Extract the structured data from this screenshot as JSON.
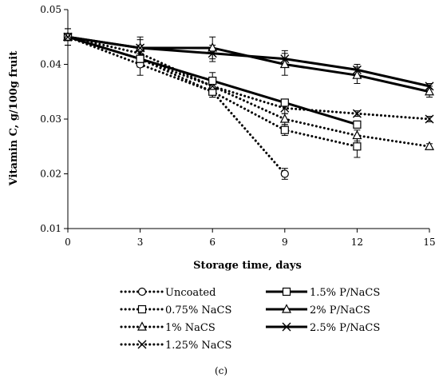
{
  "chart_data": {
    "type": "line",
    "title": "",
    "xlabel": "Storage time, days",
    "ylabel": "Vitamin C, g/100g fruit",
    "xlim": [
      0,
      15
    ],
    "ylim": [
      0.01,
      0.05
    ],
    "x_ticks": [
      "0",
      "3",
      "6",
      "9",
      "12",
      "15"
    ],
    "y_ticks": [
      "0.01",
      "0.02",
      "0.03",
      "0.04",
      "0.05"
    ],
    "grid": false,
    "legend_position": "bottom",
    "caption": "(c)",
    "series": [
      {
        "name": "Uncoated",
        "style": "dotted",
        "marker": "circle",
        "x": [
          0,
          3,
          6,
          9
        ],
        "y": [
          0.045,
          0.04,
          0.035,
          0.02
        ],
        "err": [
          0.0015,
          0.002,
          0.001,
          0.001
        ]
      },
      {
        "name": "0.75% NaCS",
        "style": "dotted",
        "marker": "square",
        "x": [
          0,
          3,
          6,
          9,
          12
        ],
        "y": [
          0.045,
          0.041,
          0.035,
          0.028,
          0.025
        ],
        "err": [
          0.0015,
          0.0015,
          0.001,
          0.001,
          0.002
        ]
      },
      {
        "name": "1% NaCS",
        "style": "dotted",
        "marker": "triangle",
        "x": [
          0,
          3,
          6,
          9,
          12,
          15
        ],
        "y": [
          0.045,
          0.041,
          0.036,
          0.03,
          0.027,
          0.025
        ],
        "err": [
          0.0015,
          0.0015,
          0.001,
          0.001,
          0.001,
          0.0005
        ]
      },
      {
        "name": "1.25% NaCS",
        "style": "dotted",
        "marker": "x",
        "x": [
          0,
          3,
          6,
          9,
          12,
          15
        ],
        "y": [
          0.045,
          0.042,
          0.036,
          0.032,
          0.031,
          0.03
        ],
        "err": [
          0.0015,
          0.0015,
          0.001,
          0.001,
          0.0005,
          0.0005
        ]
      },
      {
        "name": "1.5% P/NaCS",
        "style": "solid",
        "marker": "square",
        "x": [
          0,
          3,
          6,
          9,
          12
        ],
        "y": [
          0.045,
          0.041,
          0.037,
          0.033,
          0.029
        ],
        "err": [
          0.0015,
          0.0015,
          0.0015,
          0.0005,
          0.0005
        ]
      },
      {
        "name": "2% P/NaCS",
        "style": "solid",
        "marker": "triangle",
        "x": [
          0,
          3,
          6,
          9,
          12,
          15
        ],
        "y": [
          0.045,
          0.043,
          0.043,
          0.04,
          0.038,
          0.035
        ],
        "err": [
          0.0015,
          0.0015,
          0.002,
          0.002,
          0.0015,
          0.001
        ]
      },
      {
        "name": "2.5% P/NaCS",
        "style": "solid",
        "marker": "x",
        "x": [
          0,
          3,
          6,
          9,
          12,
          15
        ],
        "y": [
          0.045,
          0.043,
          0.042,
          0.041,
          0.039,
          0.036
        ],
        "err": [
          0.0015,
          0.002,
          0.0015,
          0.0015,
          0.001,
          0.0005
        ]
      }
    ]
  }
}
